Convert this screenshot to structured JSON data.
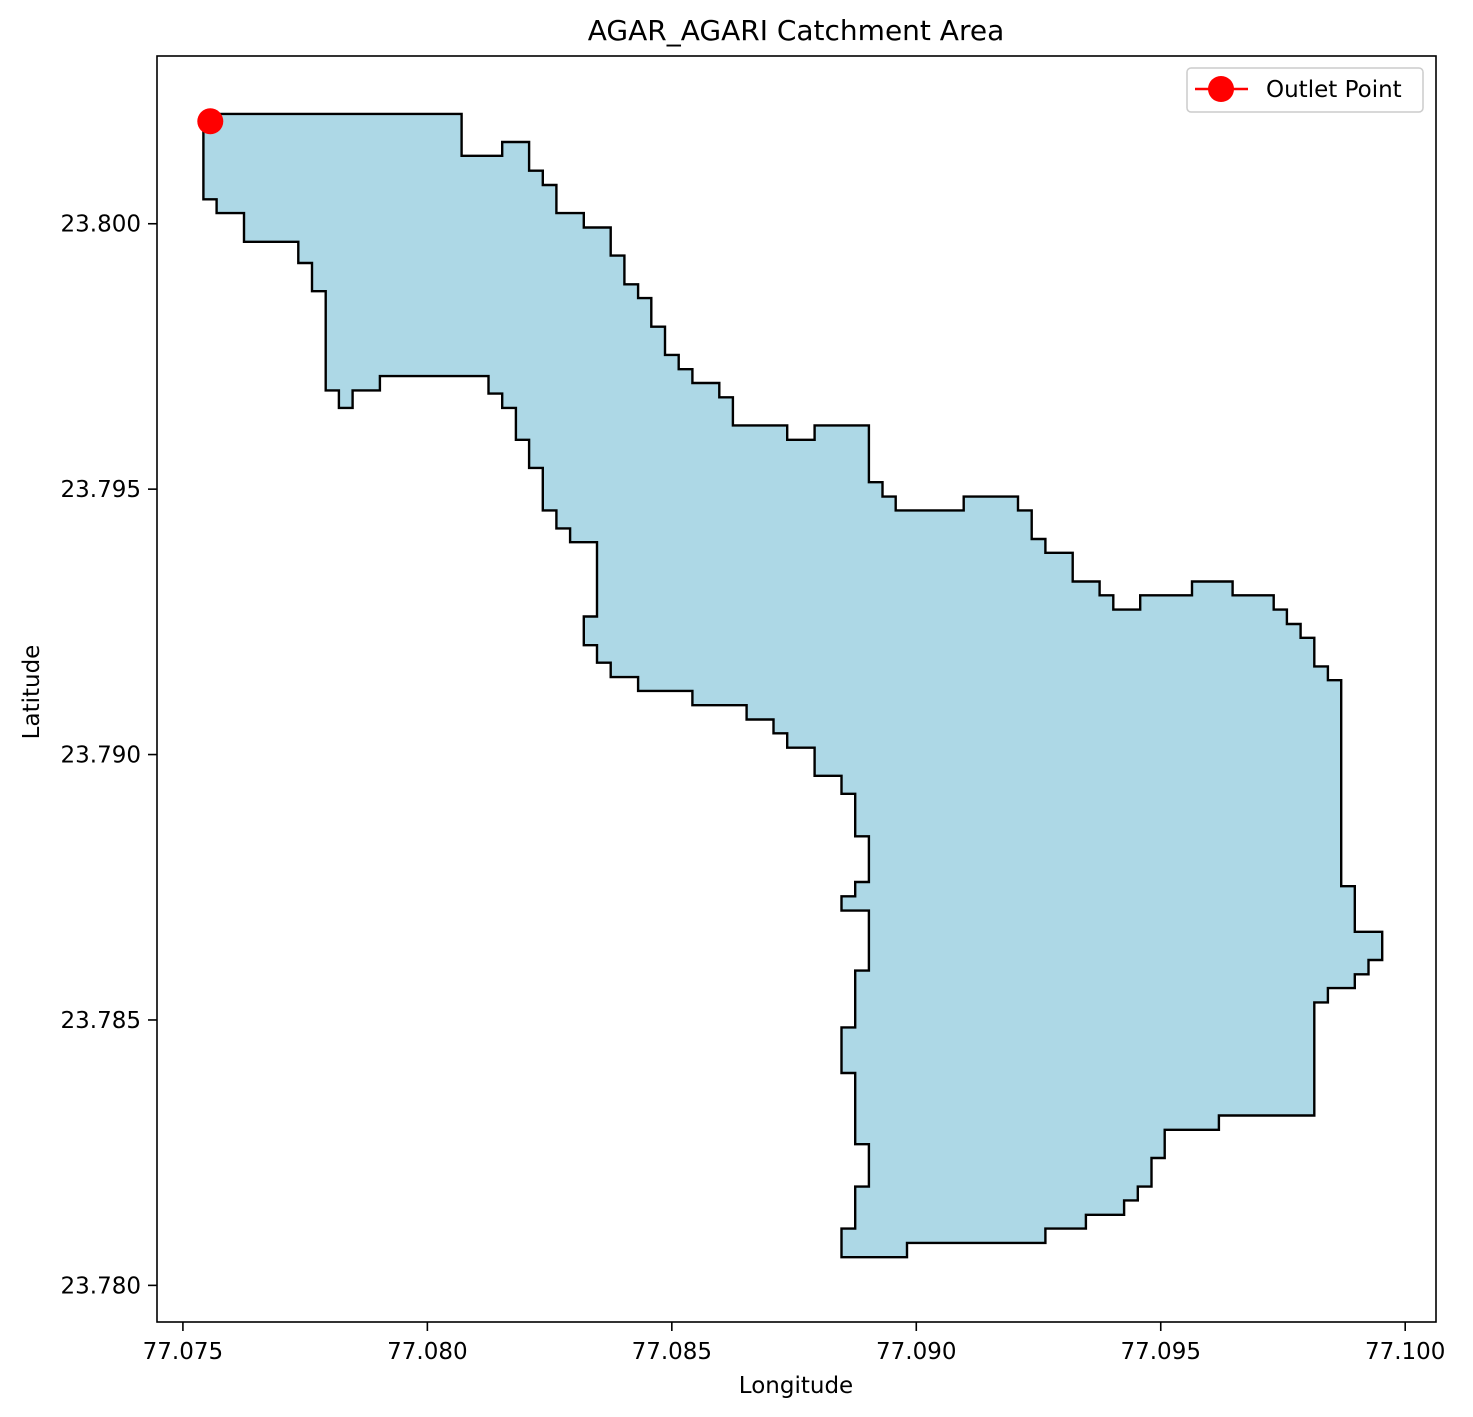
{
  "chart_data": {
    "type": "map",
    "title": "AGAR_AGARI Catchment Area",
    "xlabel": "Longitude",
    "ylabel": "Latitude",
    "xlim": [
      77.07447,
      77.10063
    ],
    "ylim": [
      23.77931,
      23.80316
    ],
    "xticks": [
      77.075,
      77.08,
      77.085,
      77.09,
      77.095,
      77.1
    ],
    "xtick_labels": [
      "77.075",
      "77.080",
      "77.085",
      "77.090",
      "77.095",
      "77.100"
    ],
    "yticks": [
      23.78,
      23.785,
      23.79,
      23.795,
      23.8
    ],
    "ytick_labels": [
      "23.780",
      "23.785",
      "23.790",
      "23.795",
      "23.800"
    ],
    "grid": false,
    "legend": {
      "placement": "top-right",
      "entries": [
        "Outlet Point"
      ]
    },
    "colors": {
      "catchment_fill": "#add8e6",
      "catchment_edge": "#000000",
      "outlet": "#ff0000"
    },
    "outlet_point": {
      "label": "Outlet Point",
      "lon": 77.07556,
      "lat": 23.80193
    },
    "catchment_boundary": [
      [
        77.07542,
        23.80207
      ],
      [
        77.0807,
        23.80207
      ],
      [
        77.0807,
        23.80128
      ],
      [
        77.08153,
        23.80128
      ],
      [
        77.08153,
        23.80154
      ],
      [
        77.08208,
        23.80154
      ],
      [
        77.08208,
        23.801
      ],
      [
        77.08236,
        23.801
      ],
      [
        77.08236,
        23.80073
      ],
      [
        77.08264,
        23.80073
      ],
      [
        77.08264,
        23.8002
      ],
      [
        77.0832,
        23.8002
      ],
      [
        77.0832,
        23.79993
      ],
      [
        77.08375,
        23.79993
      ],
      [
        77.08375,
        23.7994
      ],
      [
        77.08403,
        23.7994
      ],
      [
        77.08403,
        23.79886
      ],
      [
        77.08431,
        23.79886
      ],
      [
        77.08431,
        23.7986
      ],
      [
        77.08458,
        23.7986
      ],
      [
        77.08458,
        23.79806
      ],
      [
        77.08486,
        23.79806
      ],
      [
        77.08486,
        23.79753
      ],
      [
        77.08514,
        23.79753
      ],
      [
        77.08514,
        23.79726
      ],
      [
        77.08542,
        23.79726
      ],
      [
        77.08542,
        23.797
      ],
      [
        77.08597,
        23.797
      ],
      [
        77.08597,
        23.79673
      ],
      [
        77.08625,
        23.79673
      ],
      [
        77.08625,
        23.7962
      ],
      [
        77.08736,
        23.7962
      ],
      [
        77.08736,
        23.79593
      ],
      [
        77.08792,
        23.79593
      ],
      [
        77.08792,
        23.7962
      ],
      [
        77.08903,
        23.7962
      ],
      [
        77.08903,
        23.79513
      ],
      [
        77.08931,
        23.79513
      ],
      [
        77.08931,
        23.79486
      ],
      [
        77.08958,
        23.79486
      ],
      [
        77.08958,
        23.7946
      ],
      [
        77.09097,
        23.7946
      ],
      [
        77.09097,
        23.79486
      ],
      [
        77.09208,
        23.79486
      ],
      [
        77.09208,
        23.7946
      ],
      [
        77.09236,
        23.7946
      ],
      [
        77.09236,
        23.79406
      ],
      [
        77.09264,
        23.79406
      ],
      [
        77.09264,
        23.7938
      ],
      [
        77.0932,
        23.7938
      ],
      [
        77.0932,
        23.79326
      ],
      [
        77.09375,
        23.79326
      ],
      [
        77.09375,
        23.793
      ],
      [
        77.09403,
        23.793
      ],
      [
        77.09403,
        23.79273
      ],
      [
        77.09458,
        23.79273
      ],
      [
        77.09458,
        23.793
      ],
      [
        77.09564,
        23.793
      ],
      [
        77.09564,
        23.79326
      ],
      [
        77.09647,
        23.79326
      ],
      [
        77.09647,
        23.793
      ],
      [
        77.09731,
        23.793
      ],
      [
        77.09731,
        23.79273
      ],
      [
        77.09758,
        23.79273
      ],
      [
        77.09758,
        23.79246
      ],
      [
        77.09786,
        23.79246
      ],
      [
        77.09786,
        23.7922
      ],
      [
        77.09814,
        23.7922
      ],
      [
        77.09814,
        23.79166
      ],
      [
        77.09842,
        23.79166
      ],
      [
        77.09842,
        23.7914
      ],
      [
        77.09869,
        23.7914
      ],
      [
        77.09869,
        23.78752
      ],
      [
        77.09897,
        23.78752
      ],
      [
        77.09897,
        23.78666
      ],
      [
        77.09953,
        23.78666
      ],
      [
        77.09953,
        23.78613
      ],
      [
        77.09925,
        23.78613
      ],
      [
        77.09925,
        23.78586
      ],
      [
        77.09897,
        23.78586
      ],
      [
        77.09897,
        23.7856
      ],
      [
        77.09842,
        23.7856
      ],
      [
        77.09842,
        23.78533
      ],
      [
        77.09814,
        23.78533
      ],
      [
        77.09814,
        23.7832
      ],
      [
        77.09619,
        23.7832
      ],
      [
        77.09619,
        23.78293
      ],
      [
        77.09508,
        23.78293
      ],
      [
        77.09508,
        23.7824
      ],
      [
        77.09481,
        23.7824
      ],
      [
        77.09481,
        23.78186
      ],
      [
        77.09453,
        23.78186
      ],
      [
        77.09453,
        23.7816
      ],
      [
        77.09425,
        23.7816
      ],
      [
        77.09425,
        23.78133
      ],
      [
        77.09347,
        23.78133
      ],
      [
        77.09347,
        23.78107
      ],
      [
        77.09264,
        23.78107
      ],
      [
        77.09264,
        23.7808
      ],
      [
        77.08981,
        23.7808
      ],
      [
        77.08981,
        23.78053
      ],
      [
        77.08847,
        23.78053
      ],
      [
        77.08847,
        23.78107
      ],
      [
        77.08875,
        23.78107
      ],
      [
        77.08875,
        23.78186
      ],
      [
        77.08903,
        23.78186
      ],
      [
        77.08903,
        23.78266
      ],
      [
        77.08875,
        23.78266
      ],
      [
        77.08875,
        23.784
      ],
      [
        77.08847,
        23.784
      ],
      [
        77.08847,
        23.78486
      ],
      [
        77.08875,
        23.78486
      ],
      [
        77.08875,
        23.78593
      ],
      [
        77.08903,
        23.78593
      ],
      [
        77.08903,
        23.78706
      ],
      [
        77.08847,
        23.78706
      ],
      [
        77.08847,
        23.78733
      ],
      [
        77.08875,
        23.78733
      ],
      [
        77.08875,
        23.7876
      ],
      [
        77.08903,
        23.7876
      ],
      [
        77.08903,
        23.78846
      ],
      [
        77.08875,
        23.78846
      ],
      [
        77.08875,
        23.78926
      ],
      [
        77.08847,
        23.78926
      ],
      [
        77.08847,
        23.7896
      ],
      [
        77.08792,
        23.7896
      ],
      [
        77.08792,
        23.79013
      ],
      [
        77.08736,
        23.79013
      ],
      [
        77.08736,
        23.7904
      ],
      [
        77.08708,
        23.7904
      ],
      [
        77.08708,
        23.79066
      ],
      [
        77.08653,
        23.79066
      ],
      [
        77.08653,
        23.79093
      ],
      [
        77.08542,
        23.79093
      ],
      [
        77.08542,
        23.7912
      ],
      [
        77.08431,
        23.7912
      ],
      [
        77.08431,
        23.79146
      ],
      [
        77.08375,
        23.79146
      ],
      [
        77.08375,
        23.79173
      ],
      [
        77.08347,
        23.79173
      ],
      [
        77.08347,
        23.79206
      ],
      [
        77.0832,
        23.79206
      ],
      [
        77.0832,
        23.7926
      ],
      [
        77.08347,
        23.7926
      ],
      [
        77.08347,
        23.794
      ],
      [
        77.08292,
        23.794
      ],
      [
        77.08292,
        23.79426
      ],
      [
        77.08264,
        23.79426
      ],
      [
        77.08264,
        23.7946
      ],
      [
        77.08236,
        23.7946
      ],
      [
        77.08236,
        23.7954
      ],
      [
        77.08208,
        23.7954
      ],
      [
        77.08208,
        23.79593
      ],
      [
        77.08181,
        23.79593
      ],
      [
        77.08181,
        23.79653
      ],
      [
        77.08153,
        23.79653
      ],
      [
        77.08153,
        23.7968
      ],
      [
        77.08125,
        23.7968
      ],
      [
        77.08125,
        23.79713
      ],
      [
        77.07903,
        23.79713
      ],
      [
        77.07903,
        23.79686
      ],
      [
        77.07847,
        23.79686
      ],
      [
        77.07847,
        23.79653
      ],
      [
        77.07819,
        23.79653
      ],
      [
        77.07819,
        23.79686
      ],
      [
        77.07792,
        23.79686
      ],
      [
        77.07792,
        23.79873
      ],
      [
        77.07764,
        23.79873
      ],
      [
        77.07764,
        23.79926
      ],
      [
        77.07736,
        23.79926
      ],
      [
        77.07736,
        23.79966
      ],
      [
        77.07625,
        23.79966
      ],
      [
        77.07625,
        23.8002
      ],
      [
        77.07569,
        23.8002
      ],
      [
        77.07569,
        23.80046
      ],
      [
        77.07542,
        23.80046
      ]
    ]
  }
}
